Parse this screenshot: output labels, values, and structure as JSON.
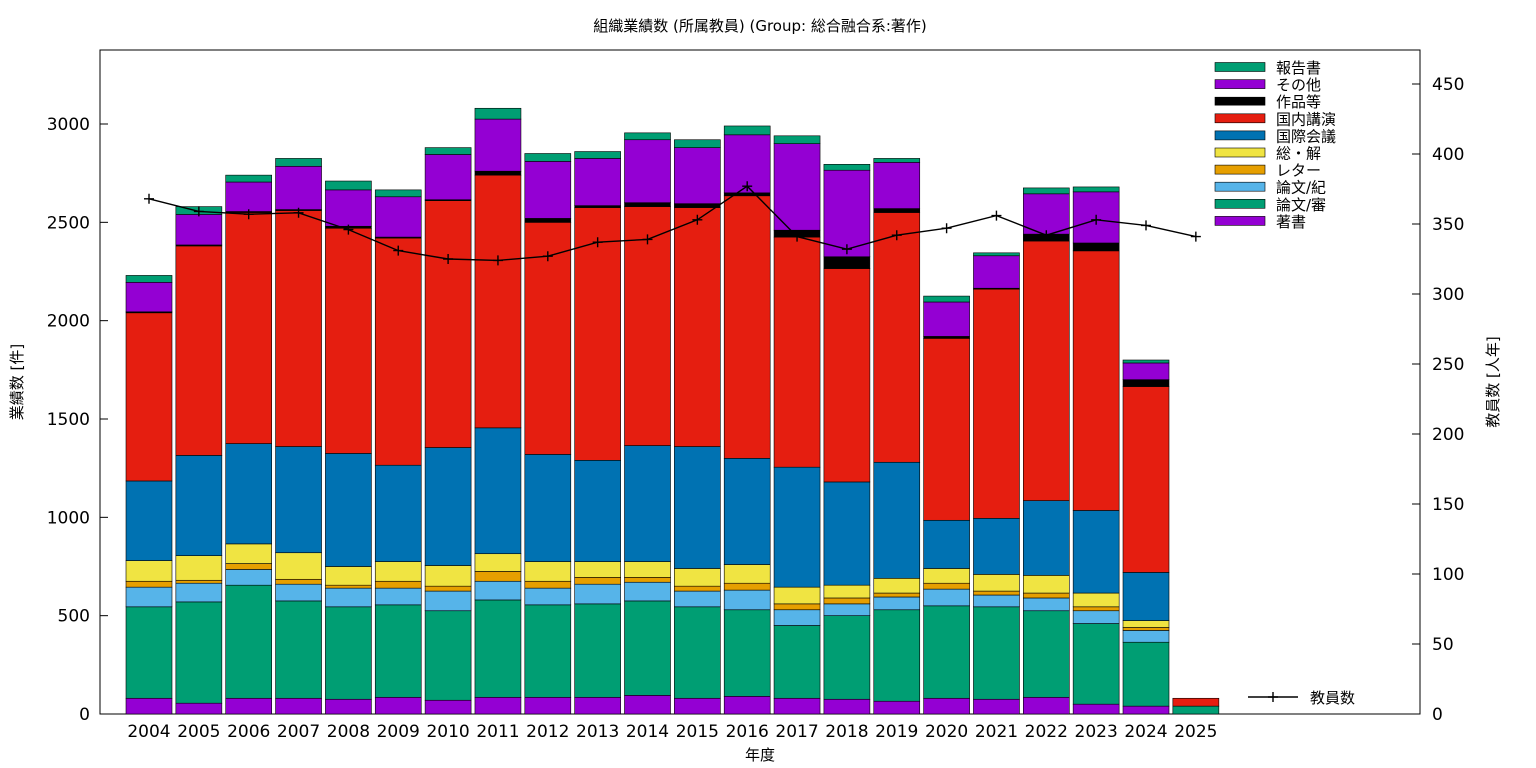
{
  "chart_data": {
    "type": "bar",
    "title": "組織業績数 (所属教員) (Group: 総合融合系:著作)",
    "xlabel": "年度",
    "ylabel": "業績数 [件]",
    "y2label": "教員数 [人年]",
    "ylim": [
      0,
      3000
    ],
    "y2lim": [
      0,
      450
    ],
    "yticks": [
      0,
      500,
      1000,
      1500,
      2000,
      2500,
      3000
    ],
    "y2ticks": [
      0,
      50,
      100,
      150,
      200,
      250,
      300,
      350,
      400,
      450
    ],
    "stacked": true,
    "legend_position": "top-right",
    "categories": [
      "2004",
      "2005",
      "2006",
      "2007",
      "2008",
      "2009",
      "2010",
      "2011",
      "2012",
      "2013",
      "2014",
      "2015",
      "2016",
      "2017",
      "2018",
      "2019",
      "2020",
      "2021",
      "2022",
      "2023",
      "2024",
      "2025"
    ],
    "series": [
      {
        "name": "著書",
        "color": "#9400d3",
        "values": [
          80,
          55,
          80,
          80,
          75,
          85,
          70,
          85,
          85,
          85,
          95,
          80,
          90,
          80,
          75,
          65,
          80,
          75,
          85,
          50,
          40,
          0
        ]
      },
      {
        "name": "論文/審",
        "color": "#009e73",
        "values": [
          465,
          515,
          575,
          495,
          470,
          470,
          455,
          495,
          470,
          475,
          480,
          465,
          440,
          370,
          425,
          465,
          470,
          470,
          440,
          410,
          325,
          40
        ]
      },
      {
        "name": "論文/紀",
        "color": "#56b4e9",
        "values": [
          100,
          95,
          80,
          85,
          95,
          85,
          100,
          95,
          85,
          100,
          95,
          80,
          100,
          80,
          60,
          65,
          85,
          60,
          65,
          65,
          60,
          0
        ]
      },
      {
        "name": "レター",
        "color": "#e69f00",
        "values": [
          30,
          15,
          30,
          25,
          15,
          35,
          25,
          50,
          35,
          35,
          25,
          25,
          35,
          30,
          30,
          20,
          30,
          20,
          25,
          20,
          15,
          0
        ]
      },
      {
        "name": "総・解",
        "color": "#f0e442",
        "values": [
          105,
          125,
          100,
          135,
          95,
          100,
          105,
          90,
          100,
          80,
          80,
          90,
          95,
          85,
          65,
          75,
          75,
          85,
          90,
          70,
          35,
          0
        ]
      },
      {
        "name": "国際会議",
        "color": "#0072b2",
        "values": [
          405,
          510,
          510,
          540,
          575,
          490,
          600,
          640,
          545,
          515,
          590,
          620,
          540,
          610,
          525,
          590,
          245,
          285,
          380,
          420,
          245,
          0
        ]
      },
      {
        "name": "国内講演",
        "color": "#e51e10",
        "values": [
          855,
          1065,
          1175,
          1200,
          1145,
          1155,
          1255,
          1285,
          1180,
          1285,
          1215,
          1215,
          1335,
          1170,
          1085,
          1270,
          925,
          1165,
          1320,
          1320,
          945,
          40
        ]
      },
      {
        "name": "作品等",
        "color": "#000000",
        "values": [
          5,
          5,
          5,
          5,
          10,
          5,
          5,
          20,
          20,
          10,
          20,
          20,
          15,
          35,
          60,
          20,
          10,
          5,
          35,
          40,
          35,
          0
        ]
      },
      {
        "name": "その他",
        "color": "#9400d3",
        "values": [
          150,
          155,
          150,
          220,
          185,
          205,
          230,
          265,
          290,
          240,
          320,
          285,
          295,
          440,
          440,
          235,
          175,
          165,
          205,
          260,
          85,
          0
        ]
      },
      {
        "name": "報告書",
        "color": "#009e73",
        "values": [
          35,
          40,
          35,
          40,
          45,
          35,
          35,
          55,
          40,
          35,
          35,
          40,
          45,
          40,
          30,
          20,
          30,
          15,
          30,
          25,
          15,
          0
        ]
      }
    ],
    "line_series": {
      "name": "教員数",
      "color": "#000000",
      "axis": "y2",
      "values": [
        368,
        359,
        357,
        358,
        346,
        331,
        325,
        324,
        327,
        337,
        339,
        353,
        377,
        341,
        332,
        342,
        347,
        356,
        342,
        353,
        349,
        341
      ]
    }
  }
}
